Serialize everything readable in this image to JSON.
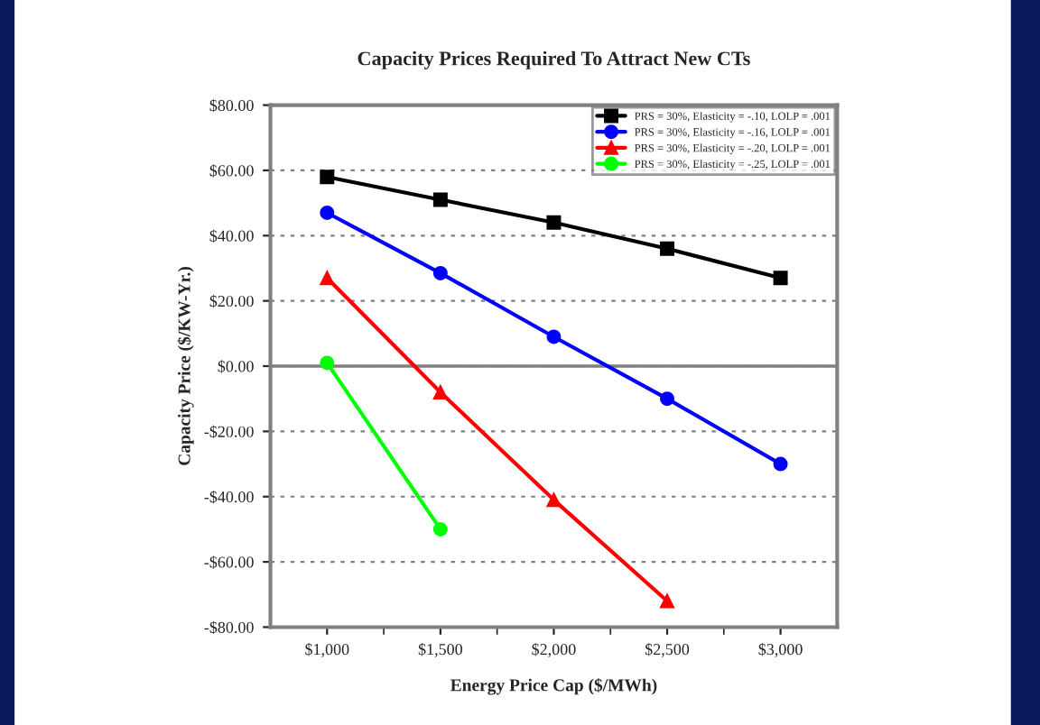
{
  "chart_data": {
    "type": "line",
    "title": "Capacity Prices Required To Attract New CTs",
    "xlabel": "Energy Price Cap ($/MWh)",
    "ylabel": "Capacity Price ($/KW-Yr.)",
    "categories": [
      "$1,000",
      "$1,500",
      "$2,000",
      "$2,500",
      "$3,000"
    ],
    "series": [
      {
        "name": "PRS = 30%, Elasticity = -.10, LOLP = .001",
        "color": "#000000",
        "marker": "square",
        "values": [
          58,
          51,
          44,
          36,
          27
        ]
      },
      {
        "name": "PRS = 30%, Elasticity = -.16, LOLP = .001",
        "color": "#0000ff",
        "marker": "circle",
        "values": [
          47,
          28.5,
          9,
          -10,
          -30
        ]
      },
      {
        "name": "PRS = 30%, Elasticity = -.20, LOLP = .001",
        "color": "#ff0000",
        "marker": "triangle",
        "values": [
          27,
          -8,
          -41,
          -72,
          null
        ]
      },
      {
        "name": "PRS = 30%, Elasticity = -.25, LOLP = .001",
        "color": "#00ff00",
        "marker": "circle",
        "values": [
          1,
          -50,
          null,
          null,
          null
        ]
      }
    ],
    "ylim": [
      -80,
      80
    ],
    "yticks": [
      {
        "value": -80,
        "label": "-$80.00"
      },
      {
        "value": -60,
        "label": "-$60.00"
      },
      {
        "value": -40,
        "label": "-$40.00"
      },
      {
        "value": -20,
        "label": "-$20.00"
      },
      {
        "value": 0,
        "label": "$0.00"
      },
      {
        "value": 20,
        "label": "$20.00"
      },
      {
        "value": 40,
        "label": "$40.00"
      },
      {
        "value": 60,
        "label": "$60.00"
      },
      {
        "value": 80,
        "label": "$80.00"
      }
    ],
    "grid": "y",
    "legend": "top right",
    "line_style": "solid",
    "ref_lines": [
      {
        "axis": "y",
        "value": 0,
        "color": "#808080"
      }
    ]
  }
}
